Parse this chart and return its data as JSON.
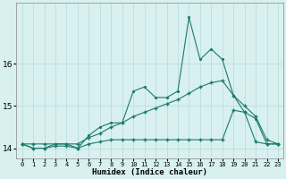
{
  "xlabel": "Humidex (Indice chaleur)",
  "background_color": "#d8f0f0",
  "grid_color": "#b8dada",
  "line_color": "#1a7a6a",
  "x_values": [
    0,
    1,
    2,
    3,
    4,
    5,
    6,
    7,
    8,
    9,
    10,
    11,
    12,
    13,
    14,
    15,
    16,
    17,
    18,
    19,
    20,
    21,
    22,
    23
  ],
  "series1": [
    14.1,
    14.0,
    14.0,
    14.1,
    14.1,
    14.0,
    14.3,
    14.5,
    14.6,
    14.6,
    15.35,
    15.45,
    15.2,
    15.2,
    15.35,
    17.1,
    16.1,
    16.35,
    16.1,
    15.25,
    14.85,
    14.7,
    14.1,
    14.1
  ],
  "series2": [
    14.1,
    14.0,
    14.0,
    14.05,
    14.05,
    14.0,
    14.1,
    14.15,
    14.2,
    14.2,
    14.2,
    14.2,
    14.2,
    14.2,
    14.2,
    14.2,
    14.2,
    14.2,
    14.2,
    14.9,
    14.85,
    14.15,
    14.1,
    14.1
  ],
  "series3": [
    14.1,
    14.1,
    14.1,
    14.1,
    14.1,
    14.1,
    14.25,
    14.35,
    14.5,
    14.6,
    14.75,
    14.85,
    14.95,
    15.05,
    15.15,
    15.3,
    15.45,
    15.55,
    15.6,
    15.25,
    15.0,
    14.75,
    14.2,
    14.1
  ],
  "ylim": [
    13.75,
    17.45
  ],
  "yticks": [
    14,
    15,
    16
  ],
  "xlim": [
    -0.5,
    23.5
  ]
}
